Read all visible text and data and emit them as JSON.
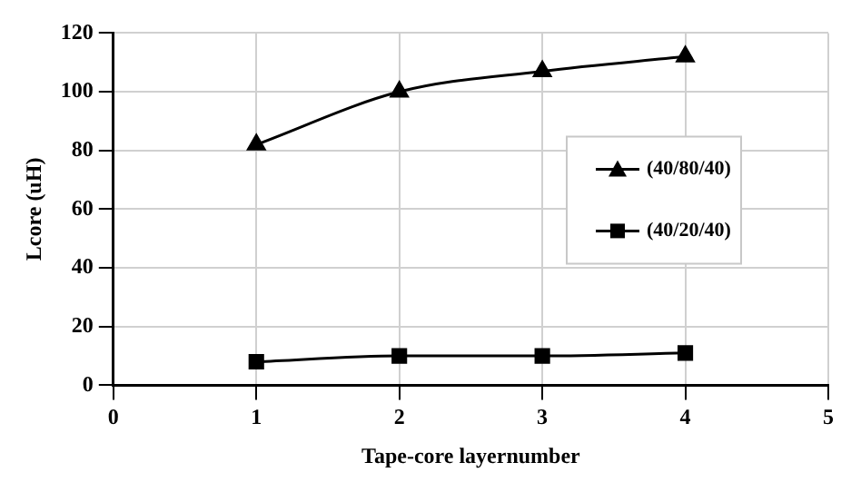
{
  "chart_data": {
    "type": "line",
    "xlabel": "Tape-core layernumber",
    "ylabel": "Lcore (uH)",
    "x": [
      1,
      2,
      3,
      4
    ],
    "xlim": [
      0,
      5
    ],
    "xticks": [
      0,
      1,
      2,
      3,
      4,
      5
    ],
    "ylim": [
      0,
      120
    ],
    "yticks": [
      0,
      20,
      40,
      60,
      80,
      100,
      120
    ],
    "grid": true,
    "legend": "right",
    "series": [
      {
        "name": "(40/80/40)",
        "color": "#000000",
        "marker": "triangle",
        "values": [
          82,
          100,
          107,
          112
        ]
      },
      {
        "name": "(40/20/40)",
        "color": "#000000",
        "marker": "square",
        "values": [
          8,
          10,
          10,
          11
        ]
      }
    ]
  }
}
